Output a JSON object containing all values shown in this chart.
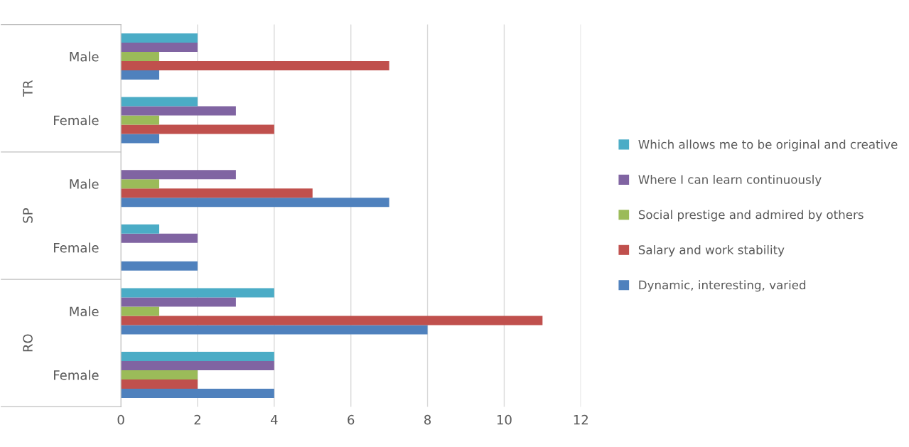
{
  "chart_data": {
    "type": "bar",
    "orientation": "horizontal",
    "categories": [
      "Male",
      "Female",
      "Male",
      "Female",
      "Male",
      "Female"
    ],
    "annotations": [
      "TR",
      "SP",
      "RO"
    ],
    "series": [
      {
        "name": "Dynamic, interesting, varied",
        "color": "#4f81bd",
        "values": [
          1,
          1,
          7,
          2,
          8,
          4
        ]
      },
      {
        "name": "Salary and work stability",
        "color": "#c0504d",
        "values": [
          7,
          4,
          5,
          null,
          11,
          2
        ]
      },
      {
        "name": "Social prestige and admired by others",
        "color": "#9bbb59",
        "values": [
          1,
          1,
          1,
          null,
          1,
          2
        ]
      },
      {
        "name": "Where I can learn continuously",
        "color": "#8064a2",
        "values": [
          2,
          3,
          3,
          2,
          3,
          4
        ]
      },
      {
        "name": "Which allows me to be original and creative",
        "color": "#4bacc6",
        "values": [
          2,
          2,
          null,
          1,
          4,
          4
        ]
      }
    ],
    "xlim": [
      0,
      12
    ],
    "xticks": [
      0,
      2,
      4,
      6,
      8,
      10,
      12
    ],
    "grid": "x",
    "legend": "right"
  }
}
